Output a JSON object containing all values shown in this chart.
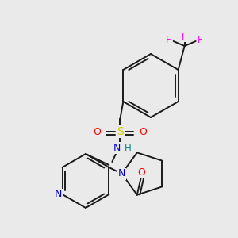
{
  "bg_color": "#eaeaea",
  "atom_colors": {
    "C": "#000000",
    "N": "#0000cc",
    "O": "#ff0000",
    "S": "#cccc00",
    "F": "#ff00ff",
    "H": "#008888"
  },
  "bond_color": "#1a1a1a",
  "figsize": [
    3.0,
    3.0
  ],
  "dpi": 100
}
